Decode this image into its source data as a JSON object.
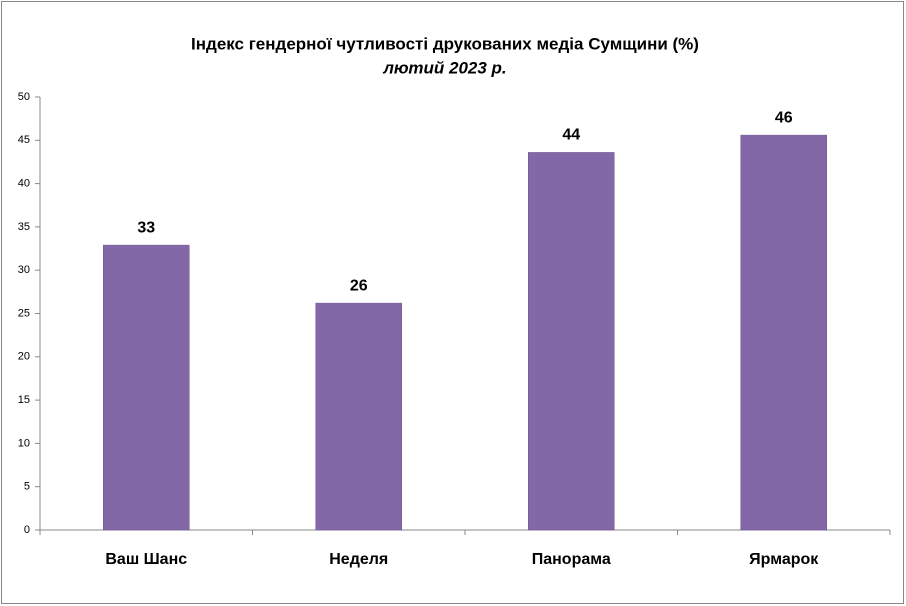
{
  "chart_data": {
    "type": "bar",
    "title": "Індекс гендерної чутливості друкованих медіа Сумщини (%)",
    "subtitle": "лютий 2023 р.",
    "categories": [
      "Ваш Шанс",
      "Неделя",
      "Панорама",
      "Ярмарок"
    ],
    "values": [
      32.9,
      26.2,
      43.6,
      45.6
    ],
    "value_labels": [
      "33",
      "26",
      "44",
      "46"
    ],
    "color": "#8368a8",
    "ylim": [
      0,
      50
    ],
    "yticks": [
      0,
      5,
      10,
      15,
      20,
      25,
      30,
      35,
      40,
      45,
      50
    ],
    "grid": false
  }
}
